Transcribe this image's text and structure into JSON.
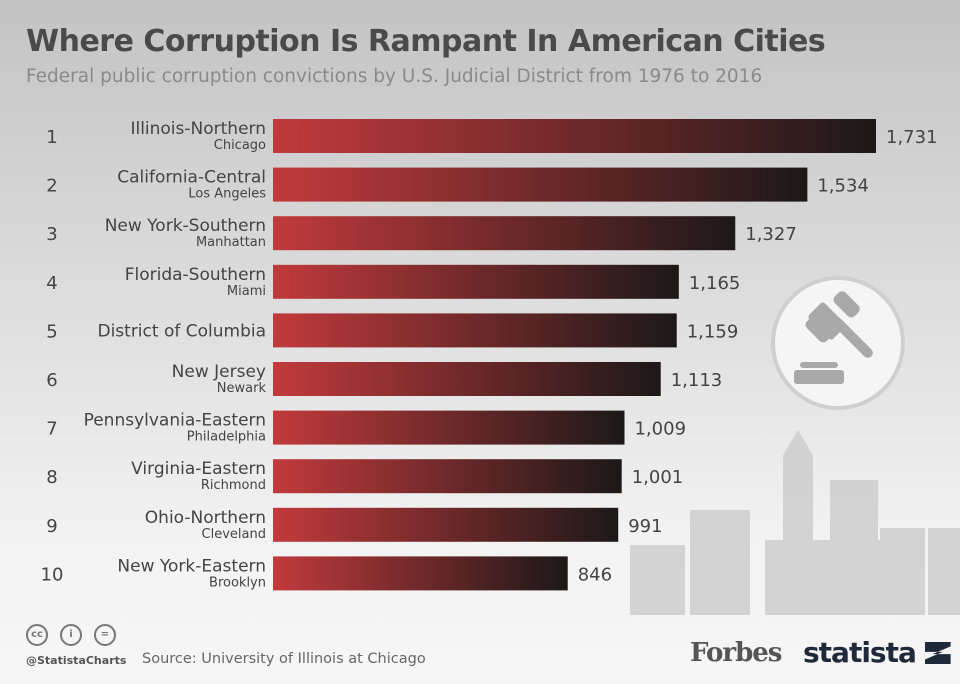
{
  "title": "Where Corruption Is Rampant In American Cities",
  "subtitle": "Federal public corruption convictions by U.S. Judicial District from 1976 to 2016",
  "footer": {
    "handle": "@StatistaCharts",
    "source": "Source: University of Illinois at Chicago",
    "brand1": "Forbes",
    "brand2": "statista",
    "cc_icons": [
      "cc",
      "by",
      "nd"
    ]
  },
  "colors": {
    "bar_start": "#c23a3c",
    "bar_end": "#1c1818",
    "text": "#444444"
  },
  "icons": [
    "gavel-icon",
    "city-skyline-illustration"
  ],
  "chart_data": {
    "type": "bar",
    "orientation": "horizontal",
    "title": "Where Corruption Is Rampant In American Cities",
    "ranks": [
      "1",
      "2",
      "3",
      "4",
      "5",
      "6",
      "7",
      "8",
      "9",
      "10"
    ],
    "categories": [
      "Illinois-Northern",
      "California-Central",
      "New York-Southern",
      "Florida-Southern",
      "District of Columbia",
      "New Jersey",
      "Pennsylvania-Eastern",
      "Virginia-Eastern",
      "Ohio-Northern",
      "New York-Eastern"
    ],
    "subcategories": [
      "Chicago",
      "Los Angeles",
      "Manhattan",
      "Miami",
      "",
      "Newark",
      "Philadelphia",
      "Richmond",
      "Cleveland",
      "Brooklyn"
    ],
    "values": [
      1731,
      1534,
      1327,
      1165,
      1159,
      1113,
      1009,
      1001,
      991,
      846
    ],
    "value_labels": [
      "1,731",
      "1,534",
      "1,327",
      "1,165",
      "1,159",
      "1,113",
      "1,009",
      "1,001",
      "991",
      "846"
    ],
    "xlim": [
      0,
      1731
    ],
    "grid": false
  }
}
